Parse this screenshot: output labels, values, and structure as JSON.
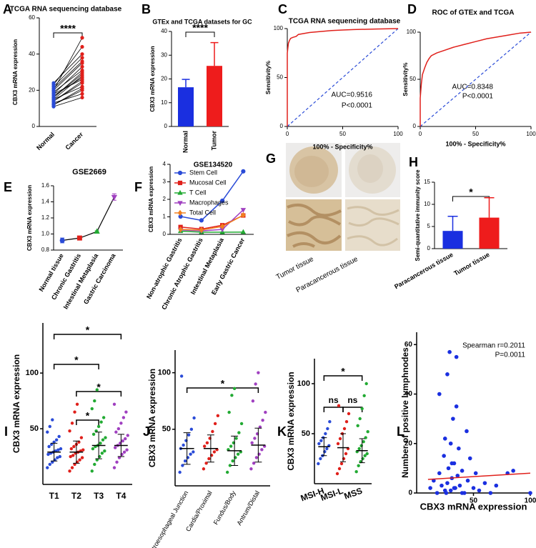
{
  "chart_data": [
    {
      "type": "paired",
      "panel": "A",
      "title": "TCGA RNA sequencing database",
      "ylabel": "CBX3 mRNA expression",
      "categories": [
        "Normal",
        "Cancer"
      ],
      "colors": [
        "#2a4bd7",
        "#e0201b"
      ],
      "values": [
        [
          12,
          14,
          15,
          16,
          18,
          20,
          22,
          24,
          13,
          17,
          19,
          21,
          11,
          15,
          18,
          23,
          14,
          16,
          20,
          12
        ],
        [
          20,
          25,
          28,
          30,
          33,
          35,
          38,
          40,
          18,
          27,
          31,
          36,
          16,
          22,
          26,
          44,
          24,
          29,
          49,
          21
        ]
      ],
      "ylim": [
        0,
        60
      ],
      "yticks": [
        0,
        20,
        40,
        60
      ],
      "annotations": [
        "****"
      ]
    },
    {
      "type": "bar",
      "panel": "B",
      "title": "GTEx and TCGA datasets for GC",
      "ylabel": "CBX3 mRNA expression",
      "categories": [
        "Normal",
        "Tumor"
      ],
      "values": [
        16.5,
        25.5
      ],
      "errors": [
        3.3,
        9.8
      ],
      "colors": [
        "#1a2fe0",
        "#ee1c1c"
      ],
      "ylim": [
        0,
        40
      ],
      "yticks": [
        0,
        10,
        20,
        30,
        40
      ],
      "annotations": [
        "****"
      ]
    },
    {
      "type": "roc",
      "panel": "C",
      "title": "TCGA RNA sequencing database",
      "xlabel": "100% - Specificity%",
      "ylabel": "Sensitivity%",
      "x": [
        0,
        0,
        1,
        2,
        3,
        5,
        8,
        10,
        15,
        20,
        30,
        40,
        50,
        60,
        80,
        100
      ],
      "y": [
        0,
        75,
        85,
        88,
        90,
        91,
        92,
        94,
        95,
        96,
        97,
        98,
        98.5,
        99,
        99.5,
        100
      ],
      "color": "#e0201b",
      "xlim": [
        0,
        100
      ],
      "ylim": [
        0,
        100
      ],
      "xticks": [
        0,
        50,
        100
      ],
      "yticks": [
        0,
        50,
        100
      ],
      "annotations": [
        "AUC=0.9516",
        "P<0.0001"
      ]
    },
    {
      "type": "roc",
      "panel": "D",
      "title": "ROC of GTEx and TCGA",
      "xlabel": "100% - Specificity%",
      "ylabel": "Sensitivity%",
      "x": [
        0,
        0,
        1,
        2,
        4,
        6,
        8,
        10,
        15,
        20,
        30,
        40,
        50,
        60,
        70,
        80,
        90,
        100
      ],
      "y": [
        0,
        30,
        45,
        55,
        62,
        68,
        72,
        75,
        78,
        80,
        84,
        87,
        90,
        93,
        95,
        97,
        99,
        100
      ],
      "color": "#e0201b",
      "xlim": [
        0,
        100
      ],
      "ylim": [
        0,
        100
      ],
      "xticks": [
        0,
        50,
        100
      ],
      "yticks": [
        0,
        50,
        100
      ],
      "annotations": [
        "AUC=0.8348",
        "P<0.0001"
      ]
    },
    {
      "type": "line",
      "panel": "E",
      "title": "GSE2669",
      "ylabel": "CBX3 mRNA expression",
      "categories": [
        "Normal tissue",
        "Chronic Gastritis",
        "Intestinal Metaplasia",
        "Gastric Carcinoma"
      ],
      "values": [
        0.92,
        0.95,
        1.03,
        1.46
      ],
      "errors": [
        0.03,
        0.02,
        0.01,
        0.04
      ],
      "colors": [
        "#2a4bd7",
        "#e0201b",
        "#22aa33",
        "#a040c0"
      ],
      "markers": [
        "circle",
        "square",
        "triangle",
        "triangle-down"
      ],
      "ylim": [
        0.8,
        1.6
      ],
      "yticks": [
        0.8,
        {
          "value": 1,
          "label": "1.0"
        },
        1.2,
        1.4,
        1.6
      ]
    },
    {
      "type": "multiline",
      "panel": "F",
      "title": "GSE134520",
      "ylabel": "CBX3 mRNA expression",
      "categories": [
        "Non-atrophic Gastritis",
        "Chronic Atrophic Gastritis",
        "Intestinal Metaplasia",
        "Early Gastric Cancer"
      ],
      "series": [
        {
          "name": "Stem Cell",
          "color": "#2a4bd7",
          "marker": "circle",
          "values": [
            1.02,
            0.8,
            1.92,
            3.6
          ]
        },
        {
          "name": "Mucosal Cell",
          "color": "#e0201b",
          "marker": "square",
          "values": [
            0.42,
            0.3,
            0.52,
            1.08
          ]
        },
        {
          "name": "T Cell",
          "color": "#22aa33",
          "marker": "triangle",
          "values": [
            0.18,
            0.12,
            0.12,
            0.13
          ]
        },
        {
          "name": "Macrophages",
          "color": "#a040c0",
          "marker": "triangle-down",
          "values": [
            0.25,
            0.2,
            0.28,
            1.4
          ]
        },
        {
          "name": "Total Cell",
          "color": "#f08020",
          "marker": "diamond",
          "values": [
            0.28,
            0.25,
            0.45,
            1.1
          ]
        }
      ],
      "ylim": [
        0,
        4
      ],
      "yticks": [
        0,
        1,
        2,
        3,
        4
      ]
    },
    {
      "type": "image",
      "panel": "G",
      "labels": [
        "Tumor tissue",
        "Paracancerous tissue"
      ]
    },
    {
      "type": "bar",
      "panel": "H",
      "ylabel": "Semi-quantitative immunity score",
      "categories": [
        "Paracancerous tissue",
        "Tumor tissue"
      ],
      "values": [
        4,
        7
      ],
      "errors": [
        3.3,
        4.5
      ],
      "colors": [
        "#1a2fe0",
        "#ee1c1c"
      ],
      "ylim": [
        0,
        15
      ],
      "yticks": [
        0,
        5,
        10,
        15
      ],
      "annotations": [
        "*"
      ]
    },
    {
      "type": "dot",
      "panel": "I",
      "ylabel": "CBX3 mRNA expression",
      "categories": [
        "T1",
        "T2",
        "T3",
        "T4"
      ],
      "colors": [
        "#2a4bd7",
        "#e0201b",
        "#22aa33",
        "#a040c0"
      ],
      "values": [
        [
          15,
          18,
          20,
          22,
          24,
          25,
          27,
          28,
          29,
          30,
          31,
          32,
          34,
          36,
          38,
          40,
          43,
          47,
          52,
          58
        ],
        [
          12,
          15,
          18,
          20,
          22,
          24,
          25,
          26,
          28,
          29,
          30,
          31,
          32,
          34,
          36,
          38,
          42,
          48,
          55,
          65,
          72
        ],
        [
          12,
          18,
          22,
          25,
          28,
          30,
          32,
          34,
          35,
          37,
          40,
          42,
          45,
          48,
          52,
          56,
          60,
          68,
          75,
          85
        ],
        [
          15,
          20,
          24,
          27,
          29,
          31,
          33,
          35,
          37,
          39,
          41,
          44,
          47,
          50,
          55,
          60,
          65,
          72
        ]
      ],
      "means": [
        29,
        29,
        35,
        35
      ],
      "errors": [
        8,
        10,
        12,
        10
      ],
      "ylim": [
        0,
        145
      ],
      "yticks": [
        50,
        100
      ],
      "annotations": [
        "*",
        "*",
        "*",
        "*"
      ]
    },
    {
      "type": "dot",
      "panel": "J",
      "ylabel": "CBX3 mRNA expression",
      "categories": [
        "Gastroesophageal Junction",
        "Cardia/Proximal",
        "Fundus/Body",
        "Antrum/Distal"
      ],
      "colors": [
        "#2a4bd7",
        "#e0201b",
        "#22aa33",
        "#a040c0"
      ],
      "values": [
        [
          12,
          18,
          22,
          25,
          28,
          30,
          33,
          36,
          40,
          45,
          50,
          60,
          97
        ],
        [
          15,
          20,
          24,
          27,
          30,
          32,
          35,
          38,
          42,
          48,
          55,
          62
        ],
        [
          12,
          18,
          22,
          25,
          28,
          30,
          32,
          35,
          38,
          42,
          47,
          55,
          65,
          80,
          86
        ],
        [
          15,
          20,
          25,
          28,
          32,
          35,
          38,
          42,
          46,
          52,
          58,
          65,
          75,
          90,
          100
        ]
      ],
      "means": [
        33,
        33,
        31,
        36
      ],
      "errors": [
        14,
        12,
        13,
        15
      ],
      "ylim": [
        0,
        120
      ],
      "yticks": [
        50,
        100
      ],
      "annotations": [
        "*"
      ]
    },
    {
      "type": "dot",
      "panel": "K",
      "ylabel": "CBX3 mRNA expression",
      "categories": [
        "MSI-H",
        "MSI-L",
        "MSS"
      ],
      "colors": [
        "#2a4bd7",
        "#e0201b",
        "#22aa33"
      ],
      "values": [
        [
          20,
          25,
          28,
          32,
          35,
          38,
          40,
          43,
          46,
          50,
          55,
          62
        ],
        [
          10,
          15,
          20,
          25,
          30,
          35,
          40,
          45,
          50,
          55,
          62,
          70,
          78
        ],
        [
          12,
          18,
          22,
          25,
          28,
          30,
          32,
          35,
          38,
          42,
          46,
          52,
          58,
          65,
          75,
          88,
          100
        ]
      ],
      "means": [
        37,
        36,
        33
      ],
      "errors": [
        9,
        14,
        12
      ],
      "ylim": [
        0,
        125
      ],
      "yticks": [
        50,
        100
      ],
      "annotations": [
        "*",
        "ns",
        "ns"
      ]
    },
    {
      "type": "scatter",
      "panel": "L",
      "xlabel": "CBX3 mRNA expression",
      "ylabel": "Number of positive lymphnodes",
      "color": "#1a2fe0",
      "x": [
        12,
        15,
        18,
        20,
        22,
        24,
        25,
        26,
        27,
        28,
        29,
        30,
        31,
        32,
        33,
        34,
        35,
        36,
        37,
        38,
        40,
        42,
        44,
        45,
        47,
        50,
        52,
        55,
        60,
        65,
        70,
        80,
        85,
        100,
        20,
        25,
        30,
        35,
        40,
        27,
        31,
        33
      ],
      "y": [
        2,
        5,
        0,
        8,
        3,
        15,
        22,
        0,
        4,
        10,
        57,
        1,
        6,
        30,
        12,
        2,
        55,
        7,
        18,
        3,
        9,
        0,
        25,
        5,
        14,
        2,
        8,
        1,
        4,
        0,
        3,
        8,
        9,
        0,
        40,
        1,
        20,
        35,
        0,
        48,
        12,
        2
      ],
      "fit": {
        "x": [
          10,
          100
        ],
        "y": [
          5.5,
          8
        ]
      },
      "fit_color": "#e0201b",
      "xlim": [
        0,
        100
      ],
      "ylim": [
        0,
        65
      ],
      "xticks": [
        50,
        100
      ],
      "yticks": [
        0,
        20,
        40,
        60
      ],
      "annotations": [
        "Spearman r=0.2011",
        "P=0.0011"
      ]
    }
  ]
}
